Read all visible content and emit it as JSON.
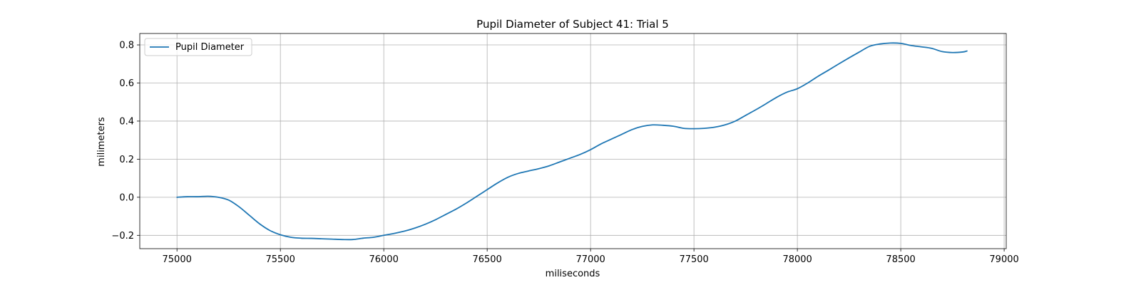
{
  "chart_data": {
    "type": "line",
    "title": "Pupil Diameter of Subject 41: Trial 5",
    "xlabel": "miliseconds",
    "ylabel": "milimeters",
    "xlim": [
      74820,
      79010
    ],
    "ylim": [
      -0.27,
      0.86
    ],
    "xticks": [
      75000,
      75500,
      76000,
      76500,
      77000,
      77500,
      78000,
      78500,
      79000
    ],
    "yticks": [
      -0.2,
      0.0,
      0.2,
      0.4,
      0.6,
      0.8
    ],
    "ytick_labels": [
      "−0.2",
      "0.0",
      "0.2",
      "0.4",
      "0.6",
      "0.8"
    ],
    "grid": true,
    "legend_position": "upper-left",
    "series": [
      {
        "name": "Pupil Diameter",
        "color": "#1f77b4",
        "x": [
          75000,
          75050,
          75100,
          75150,
          75200,
          75250,
          75300,
          75350,
          75400,
          75450,
          75500,
          75550,
          75600,
          75650,
          75700,
          75750,
          75800,
          75850,
          75900,
          75950,
          76000,
          76050,
          76100,
          76150,
          76200,
          76250,
          76300,
          76350,
          76400,
          76450,
          76500,
          76550,
          76600,
          76650,
          76700,
          76750,
          76800,
          76850,
          76900,
          76950,
          77000,
          77050,
          77100,
          77150,
          77200,
          77250,
          77300,
          77350,
          77400,
          77450,
          77500,
          77550,
          77600,
          77650,
          77700,
          77750,
          77800,
          77850,
          77900,
          77950,
          78000,
          78050,
          78100,
          78150,
          78200,
          78250,
          78300,
          78350,
          78400,
          78450,
          78500,
          78550,
          78600,
          78650,
          78700,
          78750,
          78800,
          78820
        ],
        "y": [
          0.0,
          0.003,
          0.003,
          0.005,
          0.0,
          -0.015,
          -0.05,
          -0.095,
          -0.14,
          -0.175,
          -0.197,
          -0.21,
          -0.215,
          -0.216,
          -0.218,
          -0.22,
          -0.222,
          -0.222,
          -0.215,
          -0.21,
          -0.2,
          -0.19,
          -0.178,
          -0.162,
          -0.142,
          -0.118,
          -0.09,
          -0.062,
          -0.03,
          0.005,
          0.04,
          0.075,
          0.105,
          0.125,
          0.138,
          0.15,
          0.165,
          0.185,
          0.205,
          0.225,
          0.25,
          0.28,
          0.305,
          0.33,
          0.355,
          0.372,
          0.38,
          0.378,
          0.373,
          0.362,
          0.36,
          0.362,
          0.368,
          0.38,
          0.4,
          0.43,
          0.46,
          0.492,
          0.525,
          0.552,
          0.57,
          0.6,
          0.635,
          0.667,
          0.7,
          0.732,
          0.763,
          0.793,
          0.805,
          0.81,
          0.808,
          0.797,
          0.79,
          0.782,
          0.765,
          0.76,
          0.763,
          0.768
        ]
      }
    ]
  }
}
